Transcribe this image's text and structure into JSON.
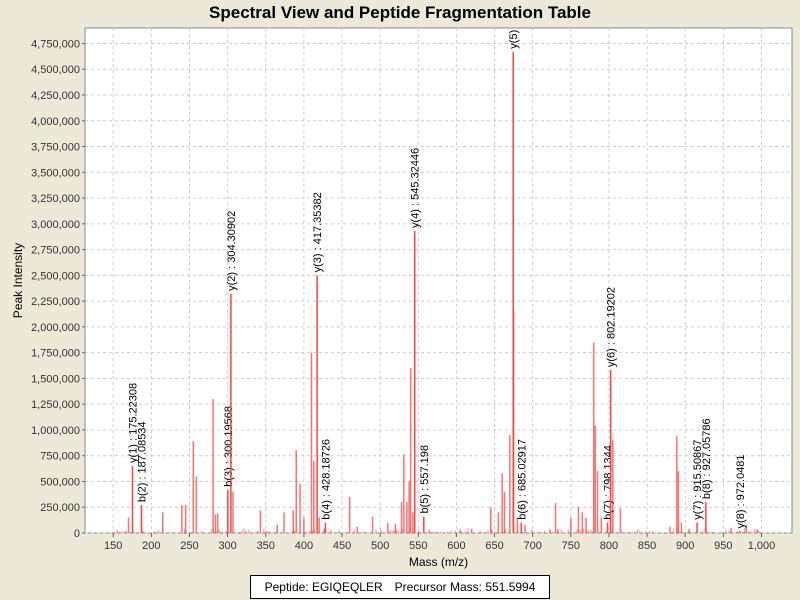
{
  "chart_data": {
    "type": "bar",
    "title": "Spectral View and Peptide Fragmentation Table",
    "xlabel": "Mass (m/z)",
    "ylabel": "Peak Intensity",
    "xlim": [
      113,
      1040
    ],
    "ylim": [
      0,
      4900000
    ],
    "grid": true,
    "xticks": [
      150,
      200,
      250,
      300,
      350,
      400,
      450,
      500,
      550,
      600,
      650,
      700,
      750,
      800,
      850,
      900,
      950,
      1000
    ],
    "xtick_labels": [
      "150",
      "200",
      "250",
      "300",
      "350",
      "400",
      "450",
      "500",
      "550",
      "600",
      "650",
      "700",
      "750",
      "800",
      "850",
      "900",
      "950",
      "1,000"
    ],
    "yticks": [
      0,
      250000,
      500000,
      750000,
      1000000,
      1250000,
      1500000,
      1750000,
      2000000,
      2250000,
      2500000,
      2750000,
      3000000,
      3250000,
      3500000,
      3750000,
      4000000,
      4250000,
      4500000,
      4750000
    ],
    "ytick_labels": [
      "0",
      "250,000",
      "500,000",
      "750,000",
      "1,000,000",
      "1,250,000",
      "1,500,000",
      "1,750,000",
      "2,000,000",
      "2,250,000",
      "2,500,000",
      "2,750,000",
      "3,000,000",
      "3,250,000",
      "3,500,000",
      "3,750,000",
      "4,000,000",
      "4,250,000",
      "4,500,000",
      "4,750,000"
    ],
    "peak_color": "#FF4040",
    "annotated_peaks": [
      {
        "label": "y(1) : 175.22308",
        "mz": 175.22,
        "intensity": 650000
      },
      {
        "label": "b(2) : 187.08534",
        "mz": 187.09,
        "intensity": 270000
      },
      {
        "label": "b(3) : 300.19568",
        "mz": 300.2,
        "intensity": 420000
      },
      {
        "label": "y(2) : 304.30902",
        "mz": 304.31,
        "intensity": 2320000
      },
      {
        "label": "y(3) : 417.35382",
        "mz": 417.35,
        "intensity": 2500000
      },
      {
        "label": "b(4) : 428.18726",
        "mz": 428.19,
        "intensity": 100000
      },
      {
        "label": "y(4) : 545.32446",
        "mz": 545.32,
        "intensity": 2930000
      },
      {
        "label": "b(5) : 557.198",
        "mz": 557.2,
        "intensity": 160000
      },
      {
        "label": "y(5)",
        "mz": 674.5,
        "intensity": 4670000
      },
      {
        "label": "b(6) : 685.02917",
        "mz": 685.03,
        "intensity": 100000
      },
      {
        "label": "b(7) : 798.1344",
        "mz": 798.13,
        "intensity": 100000
      },
      {
        "label": "y(6) : 802.19202",
        "mz": 802.19,
        "intensity": 1580000
      },
      {
        "label": "y(7) : 915.50867",
        "mz": 915.51,
        "intensity": 100000
      },
      {
        "label": "b(8) : 927.05786",
        "mz": 927.06,
        "intensity": 300000
      },
      {
        "label": "y(8) : 972.0481",
        "mz": 972.05,
        "intensity": 15000
      }
    ],
    "other_peaks": [
      [
        170,
        150000
      ],
      [
        215,
        200000
      ],
      [
        240,
        270000
      ],
      [
        245,
        270000
      ],
      [
        255,
        890000
      ],
      [
        259,
        550000
      ],
      [
        281,
        1300000
      ],
      [
        284,
        180000
      ],
      [
        287,
        190000
      ],
      [
        307,
        400000
      ],
      [
        343,
        220000
      ],
      [
        365,
        80000
      ],
      [
        374,
        200000
      ],
      [
        386,
        220000
      ],
      [
        390,
        800000
      ],
      [
        395,
        480000
      ],
      [
        400,
        150000
      ],
      [
        410,
        1750000
      ],
      [
        413,
        700000
      ],
      [
        420,
        150000
      ],
      [
        460,
        350000
      ],
      [
        470,
        60000
      ],
      [
        490,
        160000
      ],
      [
        510,
        100000
      ],
      [
        520,
        90000
      ],
      [
        528,
        300000
      ],
      [
        531,
        760000
      ],
      [
        535,
        300000
      ],
      [
        538,
        500000
      ],
      [
        540,
        1600000
      ],
      [
        543,
        200000
      ],
      [
        620,
        40000
      ],
      [
        645,
        250000
      ],
      [
        655,
        200000
      ],
      [
        660,
        580000
      ],
      [
        663,
        400000
      ],
      [
        670,
        950000
      ],
      [
        675,
        2150000
      ],
      [
        680,
        150000
      ],
      [
        690,
        80000
      ],
      [
        730,
        290000
      ],
      [
        750,
        150000
      ],
      [
        760,
        250000
      ],
      [
        765,
        200000
      ],
      [
        770,
        150000
      ],
      [
        780,
        1850000
      ],
      [
        782,
        1040000
      ],
      [
        785,
        600000
      ],
      [
        790,
        150000
      ],
      [
        805,
        900000
      ],
      [
        815,
        240000
      ],
      [
        880,
        60000
      ],
      [
        889,
        940000
      ],
      [
        891,
        600000
      ],
      [
        895,
        100000
      ],
      [
        905,
        40000
      ],
      [
        960,
        50000
      ],
      [
        980,
        80000
      ],
      [
        995,
        30000
      ]
    ]
  },
  "legend": {
    "peptide": "Peptide: EGIQEQLER",
    "precursor": "Precursor Mass: 551.5994"
  }
}
